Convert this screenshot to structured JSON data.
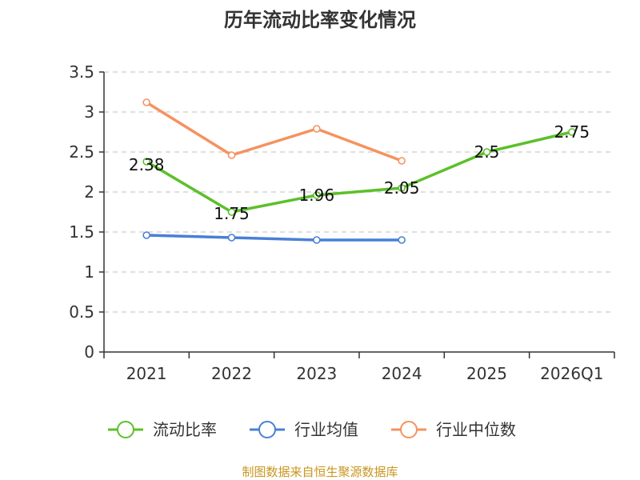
{
  "chart_data": {
    "type": "line",
    "title": "历年流动比率变化情况",
    "categories": [
      "2021",
      "2022",
      "2023",
      "2024",
      "2025",
      "2026Q1"
    ],
    "ylim": [
      0,
      3.5
    ],
    "yticks": [
      "0",
      "0.5",
      "1",
      "1.5",
      "2",
      "2.5",
      "3",
      "3.5"
    ],
    "grid": true,
    "legend_position": "bottom",
    "series": [
      {
        "name": "流动比率",
        "color": "#5cc02a",
        "values": [
          2.38,
          1.75,
          1.96,
          2.05,
          2.5,
          2.75
        ],
        "labels": [
          "2.38",
          "1.75",
          "1.96",
          "2.05",
          "2.5",
          "2.75"
        ]
      },
      {
        "name": "行业均值",
        "color": "#4a7fd6",
        "values": [
          1.46,
          1.43,
          1.4,
          1.4,
          null,
          null
        ]
      },
      {
        "name": "行业中位数",
        "color": "#f59260",
        "values": [
          3.12,
          2.46,
          2.79,
          2.39,
          null,
          null
        ]
      }
    ],
    "source": "制图数据来自恒生聚源数据库"
  }
}
